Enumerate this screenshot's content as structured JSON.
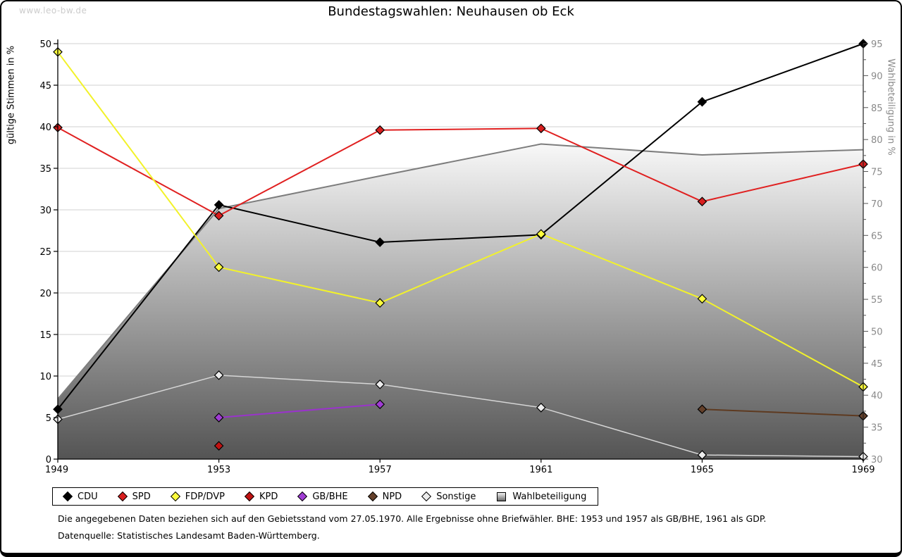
{
  "page": {
    "watermark": "www.leo-bw.de",
    "title": "Bundestagswahlen: Neuhausen ob Eck",
    "footnote1": "Die angegebenen Daten beziehen sich auf den Gebietsstand vom 27.05.1970. Alle Ergebnisse ohne Briefwähler. BHE: 1953 und 1957 als GB/BHE, 1961 als GDP.",
    "footnote2": "Datenquelle: Statistisches Landesamt Baden-Württemberg."
  },
  "chart_data": {
    "type": "line",
    "title": "Bundestagswahlen: Neuhausen ob Eck",
    "categories": [
      1949,
      1953,
      1957,
      1961,
      1965,
      1969
    ],
    "y_left": {
      "label": "gültige Stimmen in %",
      "min": 0,
      "max": 50,
      "tick_step": 5
    },
    "y_right": {
      "label": "Wahlbeteiligung in %",
      "min": 30,
      "max": 95,
      "tick_step": 5,
      "minor_tick_step": 2.5
    },
    "grid": true,
    "legend_position": "bottom",
    "series": [
      {
        "name": "CDU",
        "axis": "left",
        "kind": "line",
        "color": "#000000",
        "marker_fill": "#000000",
        "values": [
          6.0,
          30.6,
          26.1,
          27.0,
          43.0,
          50.0
        ]
      },
      {
        "name": "SPD",
        "axis": "left",
        "kind": "line",
        "color": "#e02020",
        "marker_fill": "#d81e1e",
        "values": [
          39.9,
          29.3,
          39.6,
          39.8,
          31.0,
          35.5
        ]
      },
      {
        "name": "FDP/DVP",
        "axis": "left",
        "kind": "line",
        "color": "#f2f22a",
        "marker_fill": "#ffff3c",
        "values": [
          49.0,
          23.1,
          18.8,
          27.1,
          19.3,
          8.7
        ]
      },
      {
        "name": "KPD",
        "axis": "left",
        "kind": "line",
        "color": "#ab0e0e",
        "marker_fill": "#c01212",
        "values": [
          null,
          1.6,
          null,
          null,
          null,
          null
        ]
      },
      {
        "name": "GB/BHE",
        "axis": "left",
        "kind": "line",
        "color": "#9a33cc",
        "marker_fill": "#a03cd4",
        "values": [
          null,
          5.0,
          6.6,
          null,
          null,
          null
        ]
      },
      {
        "name": "NPD",
        "axis": "left",
        "kind": "line",
        "color": "#5e3a20",
        "marker_fill": "#64402a",
        "values": [
          null,
          null,
          null,
          null,
          6.0,
          5.2
        ]
      },
      {
        "name": "Sonstige",
        "axis": "left",
        "kind": "line",
        "color": "#d6d6d6",
        "marker_fill": "#ececec",
        "values": [
          4.8,
          10.1,
          9.0,
          6.2,
          0.5,
          0.3
        ]
      },
      {
        "name": "Wahlbeteiligung",
        "axis": "right",
        "kind": "area",
        "color": "#7d7d7d",
        "area_top_color": "#f8f8f8",
        "area_bottom_color": "#545454",
        "values": [
          39.4,
          69.2,
          74.3,
          79.3,
          77.6,
          78.4
        ]
      }
    ]
  }
}
